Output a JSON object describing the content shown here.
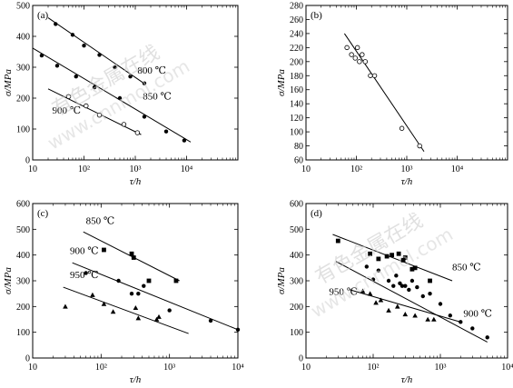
{
  "chart_data": [
    {
      "type": "scatter",
      "panel_label": "(a)",
      "xscale": "log",
      "xlim": [
        10,
        100000
      ],
      "ylim": [
        0,
        500
      ],
      "xticks": [
        10,
        100,
        1000,
        10000
      ],
      "xtick_labels": [
        "10",
        "10²",
        "10³",
        "10⁴"
      ],
      "yticks": [
        0,
        100,
        200,
        300,
        400,
        500
      ],
      "xlabel": "τ/h",
      "ylabel": "σ/MPa",
      "series": [
        {
          "name": "800 ℃",
          "marker": "filled-circle",
          "x": [
            28,
            60,
            100,
            200,
            400,
            800,
            1500
          ],
          "y": [
            440,
            405,
            370,
            340,
            300,
            270,
            248
          ],
          "fit": [
            [
              20,
              460
            ],
            [
              1600,
              244
            ]
          ]
        },
        {
          "name": "850 ℃",
          "marker": "filled-circle",
          "x": [
            15,
            30,
            70,
            160,
            500,
            1500,
            4000,
            9000
          ],
          "y": [
            338,
            305,
            270,
            235,
            200,
            140,
            92,
            63
          ],
          "fit": [
            [
              10,
              362
            ],
            [
              12000,
              58
            ]
          ]
        },
        {
          "name": "900 ℃",
          "marker": "open-circle",
          "x": [
            50,
            110,
            200,
            600,
            1100
          ],
          "y": [
            205,
            175,
            145,
            115,
            88
          ],
          "fit": [
            [
              20,
              230
            ],
            [
              1300,
              82
            ]
          ]
        }
      ],
      "annotations": [
        {
          "text": "800 ℃",
          "x": 1100,
          "y": 280
        },
        {
          "text": "850 ℃",
          "x": 1400,
          "y": 195
        },
        {
          "text": "900 ℃",
          "x": 24,
          "y": 150
        }
      ]
    },
    {
      "type": "scatter",
      "panel_label": "(b)",
      "xscale": "log",
      "xlim": [
        10,
        100000
      ],
      "ylim": [
        60,
        280
      ],
      "xticks": [
        10,
        100,
        1000,
        10000
      ],
      "xtick_labels": [
        "10",
        "10²",
        "10³",
        "10⁴"
      ],
      "yticks": [
        60,
        80,
        100,
        120,
        140,
        160,
        180,
        200,
        220,
        240,
        260,
        280
      ],
      "xlabel": "τ/h",
      "ylabel": "σ/MPa",
      "series": [
        {
          "name": "",
          "marker": "open-circle",
          "x": [
            65,
            80,
            95,
            105,
            115,
            130,
            150,
            190,
            230,
            800,
            1800
          ],
          "y": [
            220,
            210,
            205,
            220,
            200,
            210,
            200,
            180,
            180,
            105,
            80
          ],
          "fit": [
            [
              58,
              240
            ],
            [
              2200,
              72
            ]
          ]
        }
      ],
      "annotations": []
    },
    {
      "type": "scatter",
      "panel_label": "(c)",
      "xscale": "log",
      "xlim": [
        10,
        10000
      ],
      "ylim": [
        0,
        600
      ],
      "xticks": [
        10,
        100,
        1000,
        10000
      ],
      "xtick_labels": [
        "10",
        "10²",
        "10³",
        "10⁴"
      ],
      "yticks": [
        0,
        100,
        200,
        300,
        400,
        500,
        600
      ],
      "xlabel": "τ/h",
      "ylabel": "σ/MPa",
      "series": [
        {
          "name": "850 ℃",
          "marker": "filled-square",
          "x": [
            110,
            280,
            300,
            500,
            1250
          ],
          "y": [
            420,
            405,
            390,
            300,
            300
          ],
          "fit": [
            [
              55,
              490
            ],
            [
              1400,
              300
            ]
          ]
        },
        {
          "name": "900 ℃",
          "marker": "filled-circle",
          "x": [
            60,
            180,
            280,
            350,
            420,
            1000,
            4000,
            10000
          ],
          "y": [
            330,
            300,
            250,
            250,
            280,
            185,
            145,
            110
          ],
          "fit": [
            [
              38,
              370
            ],
            [
              10000,
              110
            ]
          ]
        },
        {
          "name": "950 ℃",
          "marker": "filled-triangle",
          "x": [
            30,
            75,
            110,
            150,
            320,
            350,
            650,
            700
          ],
          "y": [
            200,
            245,
            210,
            180,
            195,
            155,
            150,
            160
          ],
          "fit": [
            [
              28,
              275
            ],
            [
              1900,
              95
            ]
          ]
        }
      ],
      "annotations": [
        {
          "text": "850 ℃",
          "x": 60,
          "y": 520
        },
        {
          "text": "900 ℃",
          "x": 35,
          "y": 405
        },
        {
          "text": "950 ℃",
          "x": 35,
          "y": 310
        }
      ]
    },
    {
      "type": "scatter",
      "panel_label": "(d)",
      "xscale": "log",
      "xlim": [
        10,
        10000
      ],
      "ylim": [
        0,
        600
      ],
      "xticks": [
        10,
        100,
        1000,
        10000
      ],
      "xtick_labels": [
        "10",
        "10²",
        "10³",
        "10⁴"
      ],
      "yticks": [
        0,
        100,
        200,
        300,
        400,
        500,
        600
      ],
      "xlabel": "τ/h",
      "ylabel": "σ/MPa",
      "series": [
        {
          "name": "850 ℃",
          "marker": "filled-square",
          "x": [
            30,
            90,
            120,
            160,
            190,
            240,
            280,
            300,
            380,
            420,
            700
          ],
          "y": [
            455,
            405,
            385,
            395,
            400,
            405,
            380,
            390,
            345,
            350,
            300
          ],
          "fit": [
            [
              25,
              480
            ],
            [
              1500,
              300
            ]
          ]
        },
        {
          "name": "900 ℃",
          "marker": "filled-circle",
          "x": [
            80,
            100,
            120,
            170,
            200,
            220,
            250,
            270,
            300,
            340,
            380,
            450,
            550,
            700,
            1000,
            1400,
            2000,
            3000,
            5000
          ],
          "y": [
            355,
            305,
            340,
            300,
            280,
            320,
            290,
            280,
            280,
            265,
            300,
            275,
            240,
            250,
            210,
            165,
            140,
            115,
            80
          ],
          "fit": [
            [
              28,
              375
            ],
            [
              5000,
              62
            ]
          ]
        },
        {
          "name": "950 ℃",
          "marker": "filled-triangle",
          "x": [
            70,
            90,
            110,
            130,
            170,
            230,
            300,
            420,
            650,
            800
          ],
          "y": [
            260,
            250,
            215,
            225,
            185,
            200,
            170,
            165,
            150,
            150
          ],
          "fit": [
            [
              45,
              265
            ],
            [
              2000,
              140
            ]
          ]
        }
      ],
      "annotations": [
        {
          "text": "850 ℃",
          "x": 1500,
          "y": 340
        },
        {
          "text": "900 ℃",
          "x": 2200,
          "y": 160
        },
        {
          "text": "950 ℃",
          "x": 22,
          "y": 245
        }
      ]
    }
  ],
  "watermark": {
    "text": "有色金属在线",
    "url": "www.cnnmol.com"
  }
}
